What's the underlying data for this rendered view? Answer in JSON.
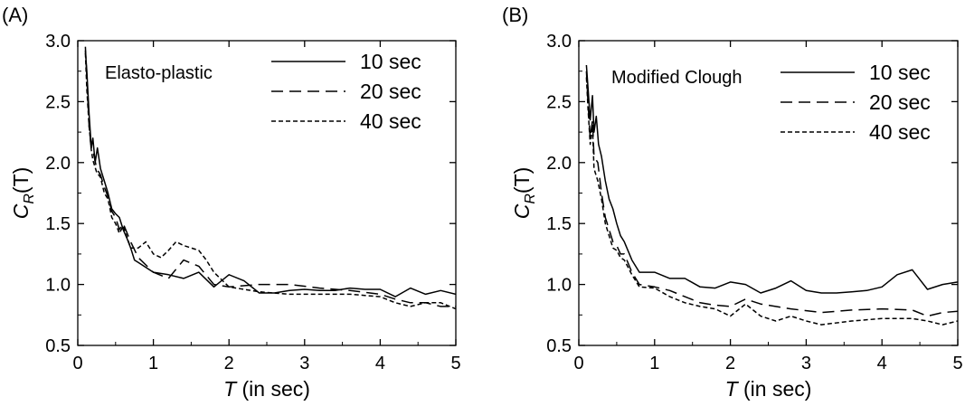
{
  "chart_data": [
    {
      "type": "line",
      "panel_label": "(A)",
      "model_label": "Elasto-plastic",
      "xlabel_var": "T",
      "xlabel_rest": " (in sec)",
      "ylabel_var": "C",
      "ylabel_sub": "R",
      "ylabel_rest": "(T)",
      "xlim": [
        0,
        5
      ],
      "ylim": [
        0.5,
        3.0
      ],
      "xticks": [
        "0",
        "1",
        "2",
        "3",
        "4",
        "5"
      ],
      "yticks": [
        "0.5",
        "1.0",
        "1.5",
        "2.0",
        "2.5",
        "3.0"
      ],
      "legend_position": "top-right",
      "series": [
        {
          "name": "10 sec",
          "style": "solid",
          "x": [
            0.1,
            0.12,
            0.15,
            0.18,
            0.2,
            0.23,
            0.26,
            0.3,
            0.35,
            0.4,
            0.45,
            0.5,
            0.55,
            0.6,
            0.65,
            0.7,
            0.75,
            0.8,
            1.0,
            1.2,
            1.4,
            1.6,
            1.8,
            2.0,
            2.2,
            2.4,
            2.6,
            2.8,
            3.0,
            3.2,
            3.4,
            3.6,
            3.8,
            4.0,
            4.2,
            4.4,
            4.6,
            4.8,
            5.0
          ],
          "y": [
            2.92,
            2.75,
            2.4,
            2.12,
            2.2,
            2.0,
            2.12,
            1.95,
            1.85,
            1.75,
            1.62,
            1.58,
            1.55,
            1.45,
            1.38,
            1.3,
            1.2,
            1.18,
            1.1,
            1.08,
            1.05,
            1.1,
            0.98,
            1.08,
            1.03,
            0.93,
            0.93,
            0.95,
            0.96,
            0.95,
            0.95,
            0.97,
            0.96,
            0.96,
            0.9,
            0.97,
            0.92,
            0.95,
            0.92
          ]
        },
        {
          "name": "20 sec",
          "style": "dashed",
          "x": [
            0.1,
            0.12,
            0.15,
            0.18,
            0.2,
            0.25,
            0.3,
            0.35,
            0.4,
            0.45,
            0.5,
            0.55,
            0.6,
            0.7,
            0.8,
            1.0,
            1.2,
            1.4,
            1.6,
            1.8,
            2.0,
            2.4,
            2.8,
            3.2,
            3.6,
            4.0,
            4.2,
            4.4,
            4.6,
            4.8,
            5.0
          ],
          "y": [
            2.95,
            2.7,
            2.3,
            2.1,
            2.1,
            1.95,
            1.9,
            1.8,
            1.72,
            1.6,
            1.55,
            1.45,
            1.5,
            1.35,
            1.22,
            1.1,
            1.05,
            1.2,
            1.15,
            1.0,
            0.98,
            1.0,
            1.0,
            0.97,
            0.95,
            0.92,
            0.88,
            0.85,
            0.85,
            0.82,
            0.82
          ]
        },
        {
          "name": "40 sec",
          "style": "dotted",
          "x": [
            0.1,
            0.12,
            0.15,
            0.18,
            0.2,
            0.25,
            0.3,
            0.35,
            0.4,
            0.45,
            0.5,
            0.55,
            0.6,
            0.7,
            0.8,
            0.9,
            1.0,
            1.1,
            1.2,
            1.3,
            1.4,
            1.5,
            1.6,
            1.7,
            1.8,
            2.0,
            2.4,
            2.8,
            3.2,
            3.6,
            4.0,
            4.2,
            4.4,
            4.6,
            4.8,
            5.0
          ],
          "y": [
            2.9,
            2.6,
            2.3,
            2.1,
            2.02,
            1.92,
            1.88,
            1.75,
            1.7,
            1.55,
            1.5,
            1.42,
            1.48,
            1.3,
            1.3,
            1.35,
            1.25,
            1.22,
            1.28,
            1.35,
            1.32,
            1.3,
            1.28,
            1.2,
            1.1,
            0.98,
            0.94,
            0.92,
            0.92,
            0.92,
            0.9,
            0.85,
            0.82,
            0.85,
            0.85,
            0.8
          ]
        }
      ]
    },
    {
      "type": "line",
      "panel_label": "(B)",
      "model_label": "Modified Clough",
      "xlabel_var": "T",
      "xlabel_rest": " (in sec)",
      "ylabel_var": "C",
      "ylabel_sub": "R",
      "ylabel_rest": "(T)",
      "xlim": [
        0,
        5
      ],
      "ylim": [
        0.5,
        3.0
      ],
      "xticks": [
        "0",
        "1",
        "2",
        "3",
        "4",
        "5"
      ],
      "yticks": [
        "0.5",
        "1.0",
        "1.5",
        "2.0",
        "2.5",
        "3.0"
      ],
      "legend_position": "top-right",
      "series": [
        {
          "name": "10 sec",
          "style": "solid",
          "x": [
            0.1,
            0.12,
            0.15,
            0.18,
            0.2,
            0.23,
            0.26,
            0.3,
            0.35,
            0.4,
            0.45,
            0.5,
            0.55,
            0.6,
            0.7,
            0.8,
            1.0,
            1.2,
            1.4,
            1.6,
            1.8,
            2.0,
            2.2,
            2.4,
            2.6,
            2.8,
            3.0,
            3.2,
            3.4,
            3.6,
            3.8,
            4.0,
            4.2,
            4.4,
            4.6,
            4.8,
            5.0
          ],
          "y": [
            2.8,
            2.62,
            2.35,
            2.55,
            2.25,
            2.38,
            2.15,
            2.05,
            1.85,
            1.7,
            1.62,
            1.5,
            1.4,
            1.35,
            1.2,
            1.1,
            1.1,
            1.05,
            1.05,
            0.98,
            0.97,
            1.02,
            1.0,
            0.93,
            0.97,
            1.03,
            0.95,
            0.93,
            0.93,
            0.94,
            0.95,
            0.98,
            1.08,
            1.12,
            0.96,
            1.0,
            1.02
          ]
        },
        {
          "name": "20 sec",
          "style": "dashed",
          "x": [
            0.1,
            0.12,
            0.15,
            0.18,
            0.2,
            0.25,
            0.3,
            0.35,
            0.4,
            0.45,
            0.5,
            0.55,
            0.6,
            0.7,
            0.8,
            1.0,
            1.2,
            1.4,
            1.6,
            1.8,
            2.0,
            2.2,
            2.4,
            2.8,
            3.2,
            3.6,
            4.0,
            4.4,
            4.6,
            4.8,
            5.0
          ],
          "y": [
            2.75,
            2.5,
            2.2,
            2.35,
            2.05,
            2.0,
            1.75,
            1.55,
            1.45,
            1.35,
            1.32,
            1.25,
            1.25,
            1.1,
            1.0,
            0.98,
            0.95,
            0.9,
            0.85,
            0.83,
            0.82,
            0.88,
            0.84,
            0.8,
            0.77,
            0.79,
            0.8,
            0.79,
            0.74,
            0.77,
            0.78
          ]
        },
        {
          "name": "40 sec",
          "style": "dotted",
          "x": [
            0.1,
            0.12,
            0.15,
            0.18,
            0.2,
            0.25,
            0.3,
            0.35,
            0.4,
            0.45,
            0.5,
            0.55,
            0.6,
            0.7,
            0.8,
            1.0,
            1.2,
            1.4,
            1.6,
            1.8,
            2.0,
            2.2,
            2.4,
            2.6,
            2.8,
            3.0,
            3.2,
            3.6,
            4.0,
            4.4,
            4.6,
            4.8,
            5.0
          ],
          "y": [
            2.7,
            2.45,
            2.15,
            2.3,
            1.95,
            1.85,
            1.7,
            1.5,
            1.4,
            1.3,
            1.28,
            1.22,
            1.2,
            1.08,
            0.98,
            0.97,
            0.9,
            0.85,
            0.82,
            0.8,
            0.74,
            0.84,
            0.74,
            0.7,
            0.74,
            0.7,
            0.67,
            0.7,
            0.72,
            0.72,
            0.7,
            0.67,
            0.7
          ]
        }
      ]
    }
  ]
}
